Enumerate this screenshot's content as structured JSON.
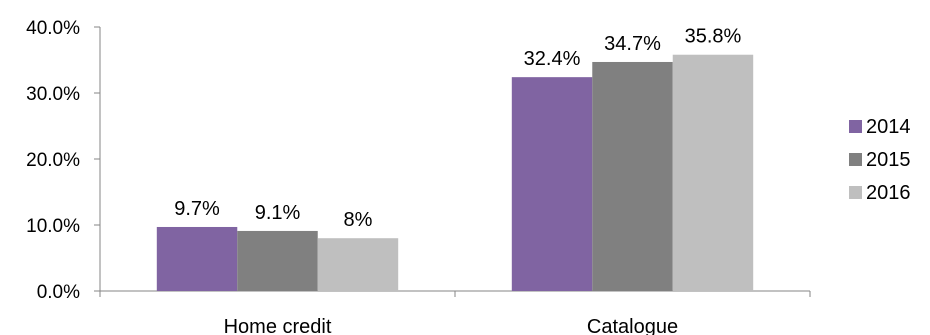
{
  "chart_data": {
    "type": "bar",
    "categories": [
      "Home credit",
      "Catalogue"
    ],
    "series": [
      {
        "name": "2014",
        "values": [
          9.7,
          32.4
        ],
        "labels": [
          "9.7%",
          "32.4%"
        ],
        "color": "#8064A2"
      },
      {
        "name": "2015",
        "values": [
          9.1,
          34.7
        ],
        "labels": [
          "9.1%",
          "34.7%"
        ],
        "color": "#808080"
      },
      {
        "name": "2016",
        "values": [
          8.0,
          35.8
        ],
        "labels": [
          "8%",
          "35.8%"
        ],
        "color": "#BFBFBF"
      }
    ],
    "yticks": [
      "0.0%",
      "10.0%",
      "20.0%",
      "30.0%",
      "40.0%"
    ],
    "ylim": [
      0,
      40
    ],
    "title": "",
    "xlabel": "",
    "ylabel": "",
    "grid": false,
    "legend_position": "right"
  }
}
